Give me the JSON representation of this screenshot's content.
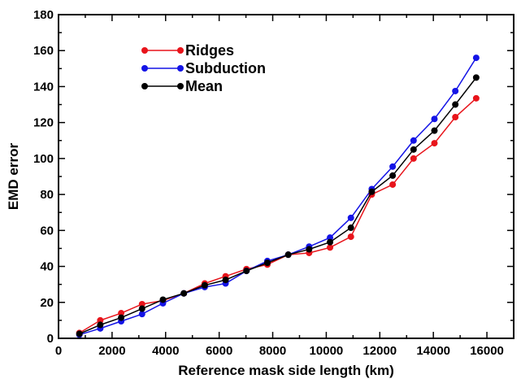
{
  "chart_data": {
    "type": "line",
    "title": "",
    "xlabel": "Reference mask side length (km)",
    "ylabel": "EMD error",
    "xlim": [
      0,
      17000
    ],
    "ylim": [
      0,
      180
    ],
    "xticks": [
      0,
      2000,
      4000,
      6000,
      8000,
      10000,
      12000,
      14000,
      16000
    ],
    "yticks": [
      0,
      20,
      40,
      60,
      80,
      100,
      120,
      140,
      160,
      180
    ],
    "grid": false,
    "legend_position": "top-left",
    "x": [
      780,
      1560,
      2340,
      3120,
      3900,
      4680,
      5460,
      6240,
      7020,
      7800,
      8580,
      9360,
      10140,
      10920,
      11700,
      12480,
      13260,
      14040,
      14820,
      15600
    ],
    "series": [
      {
        "name": "Ridges",
        "color": "#e8141b",
        "values": [
          3,
          10,
          14,
          19,
          21,
          25,
          30.5,
          34.5,
          38.5,
          41,
          46.5,
          47.5,
          50.5,
          56.5,
          80,
          85.5,
          100,
          108.5,
          123,
          133.5
        ]
      },
      {
        "name": "Subduction",
        "color": "#1414e6",
        "values": [
          2,
          5.5,
          9.5,
          13.5,
          19.5,
          25,
          28.5,
          30.5,
          37.5,
          43,
          46.5,
          51,
          56,
          67,
          83,
          95.5,
          110,
          122,
          137.5,
          156
        ]
      },
      {
        "name": "Mean",
        "color": "#000000",
        "values": [
          2.5,
          7.5,
          11.5,
          16.5,
          21.5,
          25,
          29.5,
          32.5,
          37.5,
          42,
          46.5,
          49.5,
          53.5,
          61.5,
          81.5,
          90.5,
          105,
          115.5,
          130,
          145
        ]
      }
    ]
  }
}
